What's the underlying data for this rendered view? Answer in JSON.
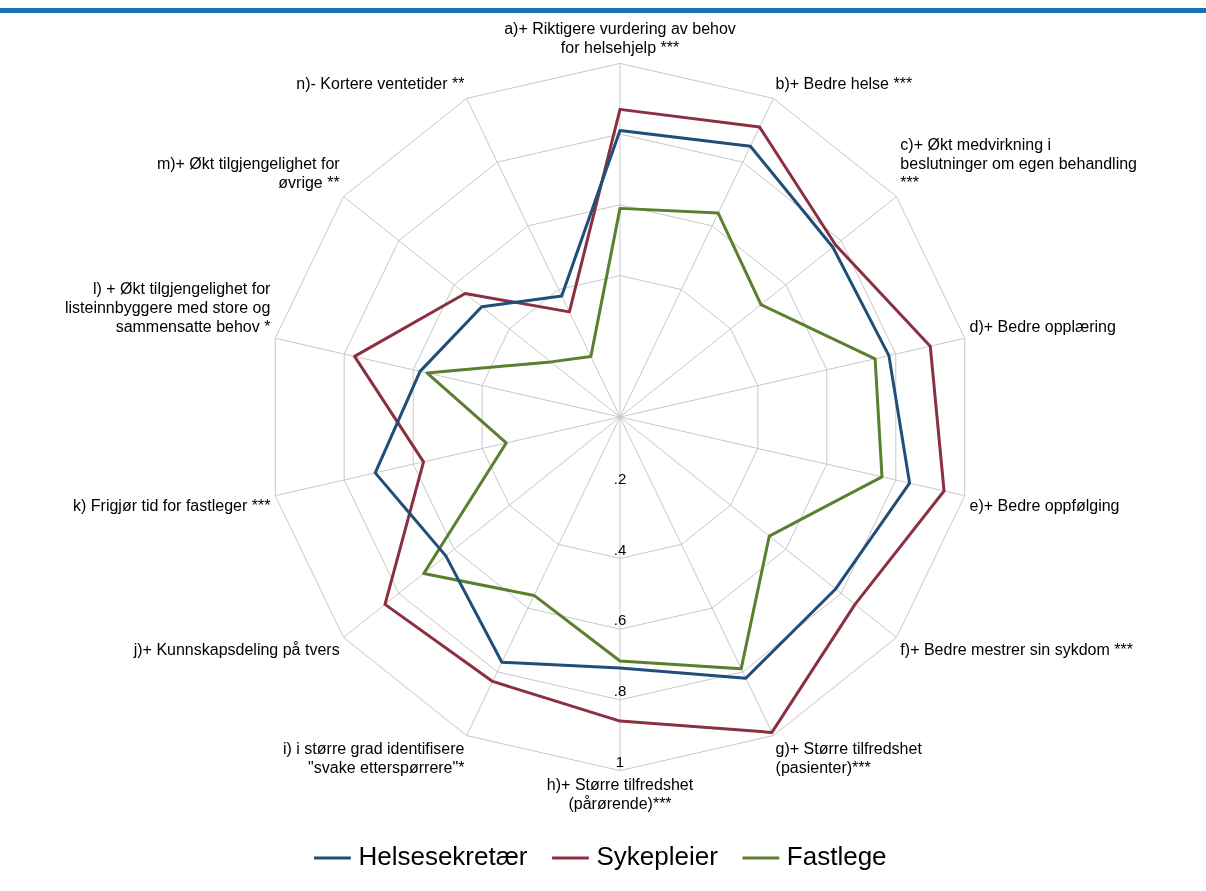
{
  "chart_data": {
    "type": "radar",
    "categories": [
      "a)+ Riktigere vurdering av behov for helsehjelp ***",
      "b)+ Bedre helse ***",
      "c)+ Økt medvirkning i beslutninger om egen behandling ***",
      "d)+ Bedre opplæring",
      "e)+ Bedre oppfølging",
      "f)+ Bedre mestrer sin sykdom ***",
      "g)+ Større tilfredshet (pasienter)***",
      "h)+ Større tilfredshet (pårørende)***",
      "i) i større grad identifisere \"svake etterspørrere\"*",
      "j)+ Kunnskapsdeling på tvers",
      "k) Frigjør tid for fastleger ***",
      "l) + Økt tilgjengelighet for listeinnbyggere med store og sammensatte behov *",
      "m)+ Økt tilgjengelighet for øvrige **",
      "n)- Kortere ventetider **"
    ],
    "series": [
      {
        "name": "Helsesekretær",
        "color": "#1f4e79",
        "values": [
          0.81,
          0.85,
          0.77,
          0.78,
          0.84,
          0.78,
          0.82,
          0.71,
          0.77,
          0.63,
          0.71,
          0.58,
          0.5,
          0.38
        ]
      },
      {
        "name": "Sykepleier",
        "color": "#8b3040",
        "values": [
          0.87,
          0.91,
          0.78,
          0.9,
          0.94,
          0.85,
          0.99,
          0.86,
          0.83,
          0.85,
          0.57,
          0.77,
          0.56,
          0.33
        ]
      },
      {
        "name": "Fastlege",
        "color": "#5a7f2e",
        "values": [
          0.59,
          0.64,
          0.51,
          0.74,
          0.76,
          0.54,
          0.79,
          0.69,
          0.56,
          0.71,
          0.33,
          0.56,
          0.25,
          0.19
        ]
      }
    ],
    "ylim": [
      0,
      1
    ],
    "yticks": [
      {
        "value": 0.2,
        "label": ".2"
      },
      {
        "value": 0.4,
        "label": ".4"
      },
      {
        "value": 0.6,
        "label": ".6"
      },
      {
        "value": 0.8,
        "label": ".8"
      },
      {
        "value": 1,
        "label": "1"
      }
    ],
    "grid": true,
    "legend": "bottom",
    "marker": "none",
    "line_style": "solid"
  }
}
